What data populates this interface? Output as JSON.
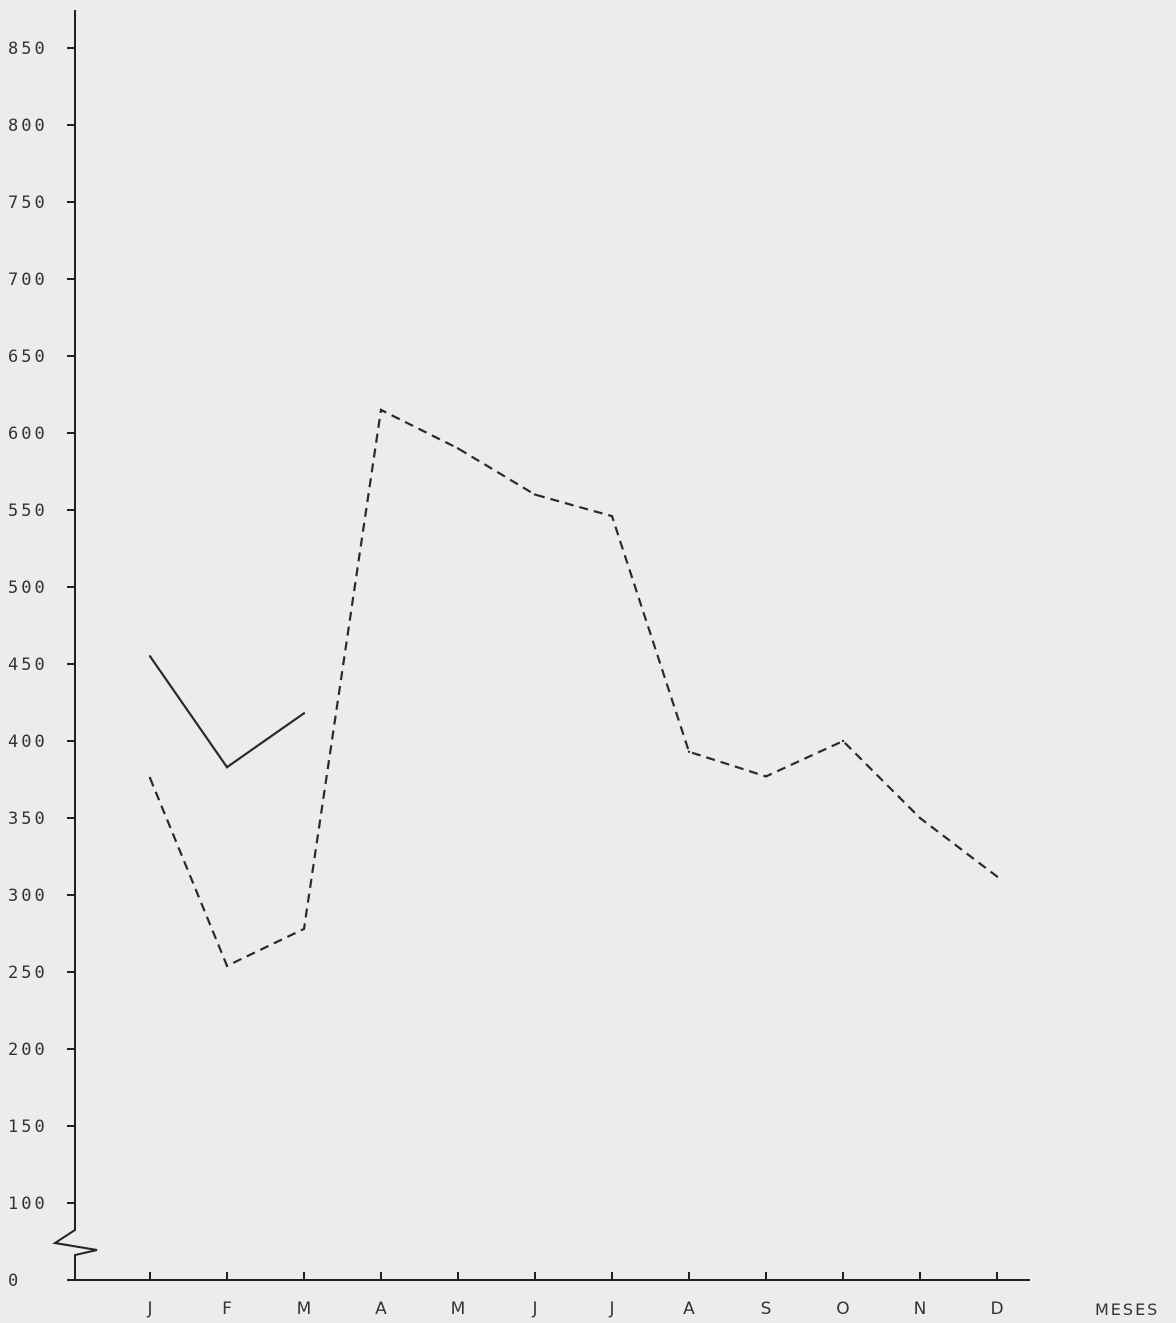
{
  "chart_data": {
    "type": "line",
    "title": "",
    "xlabel": "MESES",
    "ylabel": "",
    "categories": [
      "J",
      "F",
      "M",
      "A",
      "M",
      "J",
      "J",
      "A",
      "S",
      "O",
      "N",
      "D"
    ],
    "y_ticks": [
      "0",
      "100",
      "150",
      "200",
      "250",
      "300",
      "350",
      "400",
      "450",
      "500",
      "550",
      "600",
      "650",
      "700",
      "750",
      "800",
      "850"
    ],
    "y_axis_break": "between 0 and 100",
    "ylim": [
      0,
      850
    ],
    "grid": false,
    "legend": "none",
    "series": [
      {
        "style": "solid",
        "color": "#2a2a2a",
        "values": [
          455,
          383,
          418,
          null,
          null,
          null,
          null,
          null,
          null,
          null,
          null,
          null
        ]
      },
      {
        "style": "dashed",
        "color": "#2a2a2a",
        "values": [
          376,
          254,
          278,
          615,
          590,
          560,
          546,
          393,
          377,
          400,
          350,
          312
        ]
      }
    ]
  }
}
